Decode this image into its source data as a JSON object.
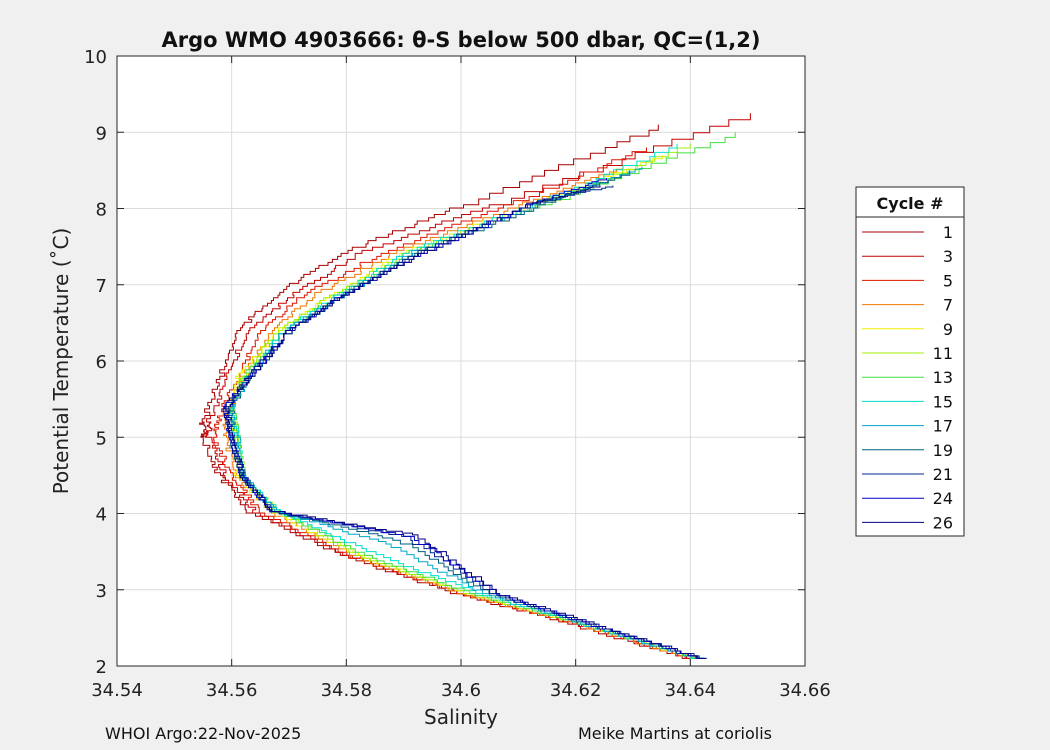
{
  "chart_data": {
    "type": "line",
    "title": "Argo WMO 4903666: θ-S below 500 dbar,  QC=(1,2)",
    "xlabel": "Salinity",
    "ylabel": "Potential Temperature (˚C)",
    "xlim": [
      34.54,
      34.66
    ],
    "ylim": [
      2,
      10
    ],
    "xticks": [
      34.54,
      34.56,
      34.58,
      34.6,
      34.62,
      34.64,
      34.66
    ],
    "xtick_labels": [
      "34.54",
      "34.56",
      "34.58",
      "34.6",
      "34.62",
      "34.64",
      "34.66"
    ],
    "yticks": [
      2,
      3,
      4,
      5,
      6,
      7,
      8,
      9,
      10
    ],
    "ytick_labels": [
      "2",
      "3",
      "4",
      "5",
      "6",
      "7",
      "8",
      "9",
      "10"
    ],
    "grid": true,
    "legend": {
      "title": "Cycle #",
      "placement": "right-outside"
    },
    "series": [
      {
        "name": "1",
        "color": "#a80000",
        "points": [
          [
            34.64,
            2.1
          ],
          [
            34.62,
            2.55
          ],
          [
            34.6,
            2.95
          ],
          [
            34.58,
            3.45
          ],
          [
            34.563,
            4.05
          ],
          [
            34.558,
            4.5
          ],
          [
            34.555,
            5.0
          ],
          [
            34.555,
            5.2
          ],
          [
            34.558,
            5.8
          ],
          [
            34.561,
            6.4
          ],
          [
            34.568,
            6.9
          ],
          [
            34.58,
            7.45
          ],
          [
            34.6,
            8.05
          ],
          [
            34.635,
            9.1
          ]
        ]
      },
      {
        "name": "3",
        "color": "#c40000",
        "points": [
          [
            34.641,
            2.1
          ],
          [
            34.621,
            2.55
          ],
          [
            34.601,
            2.95
          ],
          [
            34.581,
            3.45
          ],
          [
            34.564,
            4.05
          ],
          [
            34.559,
            4.5
          ],
          [
            34.556,
            5.0
          ],
          [
            34.556,
            5.2
          ],
          [
            34.559,
            5.8
          ],
          [
            34.563,
            6.4
          ],
          [
            34.571,
            6.9
          ],
          [
            34.583,
            7.45
          ],
          [
            34.605,
            8.05
          ],
          [
            34.65,
            9.25
          ]
        ]
      },
      {
        "name": "5",
        "color": "#e01500",
        "points": [
          [
            34.641,
            2.1
          ],
          [
            34.621,
            2.55
          ],
          [
            34.601,
            2.95
          ],
          [
            34.581,
            3.45
          ],
          [
            34.565,
            4.05
          ],
          [
            34.56,
            4.5
          ],
          [
            34.557,
            5.0
          ],
          [
            34.558,
            5.3
          ],
          [
            34.561,
            5.8
          ],
          [
            34.565,
            6.4
          ],
          [
            34.573,
            6.9
          ],
          [
            34.587,
            7.45
          ],
          [
            34.608,
            8.05
          ],
          [
            34.632,
            8.8
          ]
        ]
      },
      {
        "name": "7",
        "color": "#f07800",
        "points": [
          [
            34.641,
            2.1
          ],
          [
            34.621,
            2.55
          ],
          [
            34.601,
            2.95
          ],
          [
            34.582,
            3.45
          ],
          [
            34.567,
            4.05
          ],
          [
            34.561,
            4.5
          ],
          [
            34.559,
            5.0
          ],
          [
            34.559,
            5.3
          ],
          [
            34.562,
            5.8
          ],
          [
            34.567,
            6.4
          ],
          [
            34.575,
            6.9
          ],
          [
            34.589,
            7.45
          ],
          [
            34.61,
            8.05
          ],
          [
            34.628,
            8.55
          ]
        ]
      },
      {
        "name": "9",
        "color": "#f0f000",
        "points": [
          [
            34.642,
            2.1
          ],
          [
            34.622,
            2.55
          ],
          [
            34.602,
            2.95
          ],
          [
            34.583,
            3.45
          ],
          [
            34.567,
            4.05
          ],
          [
            34.561,
            4.5
          ],
          [
            34.561,
            5.0
          ],
          [
            34.56,
            5.4
          ],
          [
            34.561,
            5.8
          ],
          [
            34.568,
            6.4
          ],
          [
            34.578,
            6.9
          ],
          [
            34.59,
            7.45
          ],
          [
            34.612,
            8.05
          ],
          [
            34.635,
            8.7
          ]
        ]
      },
      {
        "name": "11",
        "color": "#a0f000",
        "points": [
          [
            34.642,
            2.1
          ],
          [
            34.622,
            2.55
          ],
          [
            34.602,
            2.95
          ],
          [
            34.583,
            3.45
          ],
          [
            34.568,
            4.05
          ],
          [
            34.562,
            4.5
          ],
          [
            34.561,
            5.0
          ],
          [
            34.56,
            5.4
          ],
          [
            34.562,
            5.8
          ],
          [
            34.568,
            6.4
          ],
          [
            34.578,
            6.9
          ],
          [
            34.591,
            7.45
          ],
          [
            34.613,
            8.05
          ],
          [
            34.64,
            8.85
          ]
        ]
      },
      {
        "name": "13",
        "color": "#40e040",
        "points": [
          [
            34.642,
            2.1
          ],
          [
            34.622,
            2.55
          ],
          [
            34.603,
            2.95
          ],
          [
            34.584,
            3.45
          ],
          [
            34.568,
            4.05
          ],
          [
            34.562,
            4.5
          ],
          [
            34.561,
            5.0
          ],
          [
            34.56,
            5.4
          ],
          [
            34.562,
            5.8
          ],
          [
            34.569,
            6.4
          ],
          [
            34.579,
            6.9
          ],
          [
            34.592,
            7.45
          ],
          [
            34.614,
            8.05
          ],
          [
            34.648,
            9.0
          ]
        ]
      },
      {
        "name": "15",
        "color": "#00e0d0",
        "points": [
          [
            34.642,
            2.1
          ],
          [
            34.622,
            2.55
          ],
          [
            34.604,
            2.95
          ],
          [
            34.585,
            3.5
          ],
          [
            34.568,
            4.05
          ],
          [
            34.562,
            4.5
          ],
          [
            34.561,
            5.0
          ],
          [
            34.56,
            5.4
          ],
          [
            34.563,
            5.8
          ],
          [
            34.569,
            6.4
          ],
          [
            34.579,
            6.9
          ],
          [
            34.591,
            7.45
          ],
          [
            34.612,
            8.05
          ],
          [
            34.638,
            8.85
          ]
        ]
      },
      {
        "name": "17",
        "color": "#00a8c8",
        "points": [
          [
            34.642,
            2.1
          ],
          [
            34.622,
            2.55
          ],
          [
            34.605,
            2.95
          ],
          [
            34.588,
            3.6
          ],
          [
            34.568,
            4.05
          ],
          [
            34.562,
            4.5
          ],
          [
            34.561,
            5.0
          ],
          [
            34.56,
            5.4
          ],
          [
            34.563,
            5.8
          ],
          [
            34.569,
            6.4
          ],
          [
            34.58,
            6.9
          ],
          [
            34.592,
            7.45
          ],
          [
            34.613,
            8.05
          ],
          [
            34.632,
            8.55
          ]
        ]
      },
      {
        "name": "19",
        "color": "#006080",
        "points": [
          [
            34.642,
            2.1
          ],
          [
            34.623,
            2.55
          ],
          [
            34.606,
            2.95
          ],
          [
            34.59,
            3.65
          ],
          [
            34.567,
            4.05
          ],
          [
            34.562,
            4.5
          ],
          [
            34.56,
            5.0
          ],
          [
            34.56,
            5.4
          ],
          [
            34.563,
            5.8
          ],
          [
            34.57,
            6.4
          ],
          [
            34.58,
            6.9
          ],
          [
            34.593,
            7.45
          ],
          [
            34.614,
            8.05
          ],
          [
            34.63,
            8.5
          ]
        ]
      },
      {
        "name": "21",
        "color": "#002890",
        "points": [
          [
            34.643,
            2.1
          ],
          [
            34.623,
            2.55
          ],
          [
            34.606,
            2.95
          ],
          [
            34.591,
            3.7
          ],
          [
            34.567,
            4.05
          ],
          [
            34.562,
            4.5
          ],
          [
            34.56,
            5.0
          ],
          [
            34.559,
            5.4
          ],
          [
            34.563,
            5.8
          ],
          [
            34.57,
            6.4
          ],
          [
            34.58,
            6.9
          ],
          [
            34.593,
            7.45
          ],
          [
            34.612,
            8.05
          ],
          [
            34.626,
            8.3
          ]
        ]
      },
      {
        "name": "24",
        "color": "#0000c8",
        "points": [
          [
            34.643,
            2.1
          ],
          [
            34.623,
            2.55
          ],
          [
            34.607,
            2.95
          ],
          [
            34.592,
            3.7
          ],
          [
            34.567,
            4.05
          ],
          [
            34.562,
            4.5
          ],
          [
            34.56,
            5.0
          ],
          [
            34.559,
            5.4
          ],
          [
            34.563,
            5.8
          ],
          [
            34.57,
            6.4
          ],
          [
            34.58,
            6.9
          ],
          [
            34.594,
            7.45
          ],
          [
            34.612,
            8.05
          ],
          [
            34.625,
            8.4
          ]
        ]
      },
      {
        "name": "26",
        "color": "#000080",
        "points": [
          [
            34.643,
            2.1
          ],
          [
            34.624,
            2.55
          ],
          [
            34.607,
            2.95
          ],
          [
            34.593,
            3.72
          ],
          [
            34.567,
            4.05
          ],
          [
            34.562,
            4.5
          ],
          [
            34.56,
            5.0
          ],
          [
            34.559,
            5.4
          ],
          [
            34.563,
            5.8
          ],
          [
            34.57,
            6.4
          ],
          [
            34.58,
            6.9
          ],
          [
            34.594,
            7.45
          ],
          [
            34.611,
            8.05
          ],
          [
            34.624,
            8.3
          ]
        ]
      }
    ]
  },
  "footer": {
    "left": "WHOI Argo:22-Nov-2025",
    "right": "Meike Martins at coriolis"
  }
}
